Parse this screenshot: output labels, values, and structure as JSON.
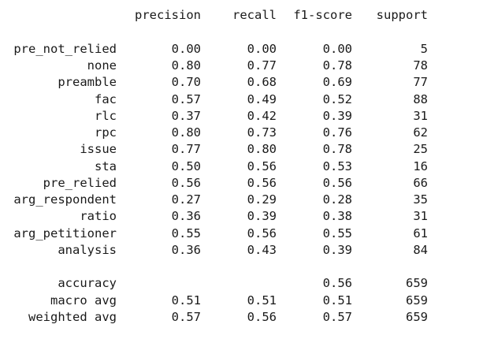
{
  "header": {
    "precision": "precision",
    "recall": "recall",
    "f1": "f1-score",
    "support": "support"
  },
  "rows": [
    {
      "label": "pre_not_relied",
      "precision": "0.00",
      "recall": "0.00",
      "f1": "0.00",
      "support": "5"
    },
    {
      "label": "none",
      "precision": "0.80",
      "recall": "0.77",
      "f1": "0.78",
      "support": "78"
    },
    {
      "label": "preamble",
      "precision": "0.70",
      "recall": "0.68",
      "f1": "0.69",
      "support": "77"
    },
    {
      "label": "fac",
      "precision": "0.57",
      "recall": "0.49",
      "f1": "0.52",
      "support": "88"
    },
    {
      "label": "rlc",
      "precision": "0.37",
      "recall": "0.42",
      "f1": "0.39",
      "support": "31"
    },
    {
      "label": "rpc",
      "precision": "0.80",
      "recall": "0.73",
      "f1": "0.76",
      "support": "62"
    },
    {
      "label": "issue",
      "precision": "0.77",
      "recall": "0.80",
      "f1": "0.78",
      "support": "25"
    },
    {
      "label": "sta",
      "precision": "0.50",
      "recall": "0.56",
      "f1": "0.53",
      "support": "16"
    },
    {
      "label": "pre_relied",
      "precision": "0.56",
      "recall": "0.56",
      "f1": "0.56",
      "support": "66"
    },
    {
      "label": "arg_respondent",
      "precision": "0.27",
      "recall": "0.29",
      "f1": "0.28",
      "support": "35"
    },
    {
      "label": "ratio",
      "precision": "0.36",
      "recall": "0.39",
      "f1": "0.38",
      "support": "31"
    },
    {
      "label": "arg_petitioner",
      "precision": "0.55",
      "recall": "0.56",
      "f1": "0.55",
      "support": "61"
    },
    {
      "label": "analysis",
      "precision": "0.36",
      "recall": "0.43",
      "f1": "0.39",
      "support": "84"
    }
  ],
  "summary": [
    {
      "label": "accuracy",
      "precision": "",
      "recall": "",
      "f1": "0.56",
      "support": "659"
    },
    {
      "label": "macro avg",
      "precision": "0.51",
      "recall": "0.51",
      "f1": "0.51",
      "support": "659"
    },
    {
      "label": "weighted avg",
      "precision": "0.57",
      "recall": "0.56",
      "f1": "0.57",
      "support": "659"
    }
  ]
}
